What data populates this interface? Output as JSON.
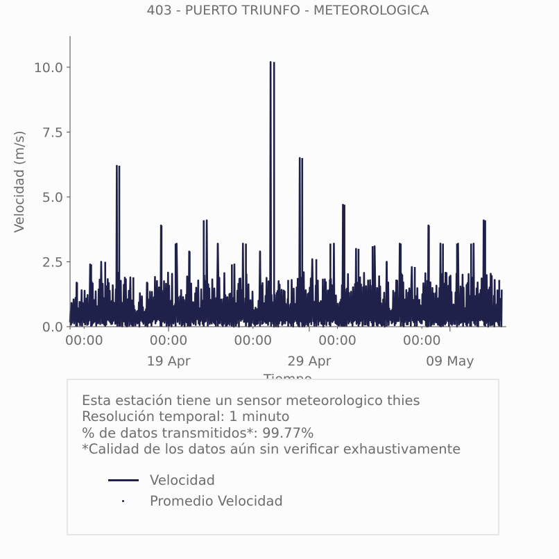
{
  "chart_data": {
    "type": "line",
    "title": "403 - PUERTO TRIUNFO - METEOROLOGICA",
    "xlabel": "Tiempo",
    "ylabel": "Velocidad (m/s)",
    "ylim": [
      0,
      11.2
    ],
    "xlim": [
      "2024-04-12",
      "2024-05-13"
    ],
    "yticks": [
      "0.0",
      "2.5",
      "5.0",
      "7.5",
      "10.0"
    ],
    "ytick_values": [
      0,
      2.5,
      5.0,
      7.5,
      10.0
    ],
    "xticks_minor": [
      "00:00",
      "00:00",
      "00:00",
      "00:00",
      "00:00"
    ],
    "xticks_minor_dates": [
      "2024-04-13",
      "2024-04-19",
      "2024-04-25",
      "2024-05-01",
      "2024-05-07"
    ],
    "xticks_major": [
      "19 Apr",
      "29 Apr",
      "09 May"
    ],
    "xticks_major_dates": [
      "2024-04-19",
      "2024-04-29",
      "2024-05-09"
    ],
    "grid": false,
    "series": [
      {
        "name": "Velocidad",
        "color": "#20214a",
        "style": "line",
        "daily_peaks": [
          {
            "x": "2024-04-12",
            "y": 1.7
          },
          {
            "x": "2024-04-13",
            "y": 2.4
          },
          {
            "x": "2024-04-14",
            "y": 2.5
          },
          {
            "x": "2024-04-15",
            "y": 6.2
          },
          {
            "x": "2024-04-16",
            "y": 1.9
          },
          {
            "x": "2024-04-17",
            "y": 1.7
          },
          {
            "x": "2024-04-18",
            "y": 3.9
          },
          {
            "x": "2024-04-19",
            "y": 3.2
          },
          {
            "x": "2024-04-20",
            "y": 2.9
          },
          {
            "x": "2024-04-21",
            "y": 4.1
          },
          {
            "x": "2024-04-22",
            "y": 3.2
          },
          {
            "x": "2024-04-23",
            "y": 2.4
          },
          {
            "x": "2024-04-24",
            "y": 3.2
          },
          {
            "x": "2024-04-25",
            "y": 2.9
          },
          {
            "x": "2024-04-26",
            "y": 10.2
          },
          {
            "x": "2024-04-27",
            "y": 1.8
          },
          {
            "x": "2024-04-28",
            "y": 6.5
          },
          {
            "x": "2024-04-29",
            "y": 2.6
          },
          {
            "x": "2024-04-30",
            "y": 3.2
          },
          {
            "x": "2024-05-01",
            "y": 4.7
          },
          {
            "x": "2024-05-02",
            "y": 3.0
          },
          {
            "x": "2024-05-03",
            "y": 3.1
          },
          {
            "x": "2024-05-04",
            "y": 2.5
          },
          {
            "x": "2024-05-05",
            "y": 3.2
          },
          {
            "x": "2024-05-06",
            "y": 2.3
          },
          {
            "x": "2024-05-07",
            "y": 3.9
          },
          {
            "x": "2024-05-08",
            "y": 3.2
          },
          {
            "x": "2024-05-09",
            "y": 3.2
          },
          {
            "x": "2024-05-10",
            "y": 3.2
          },
          {
            "x": "2024-05-11",
            "y": 4.1
          },
          {
            "x": "2024-05-12",
            "y": 1.8
          }
        ],
        "typical_min": 0.0
      },
      {
        "name": "Promedio Velocidad",
        "color": "#20214a",
        "style": "point"
      }
    ]
  },
  "info": {
    "lines": [
      "Esta estación tiene un sensor meteorologico thies",
      "Resolución temporal: 1 minuto",
      "% de datos transmitidos*: 99.77%",
      "*Calidad de los datos aún sin verificar exhaustivamente"
    ]
  },
  "legend": {
    "items": [
      "Velocidad",
      "Promedio Velocidad"
    ]
  }
}
